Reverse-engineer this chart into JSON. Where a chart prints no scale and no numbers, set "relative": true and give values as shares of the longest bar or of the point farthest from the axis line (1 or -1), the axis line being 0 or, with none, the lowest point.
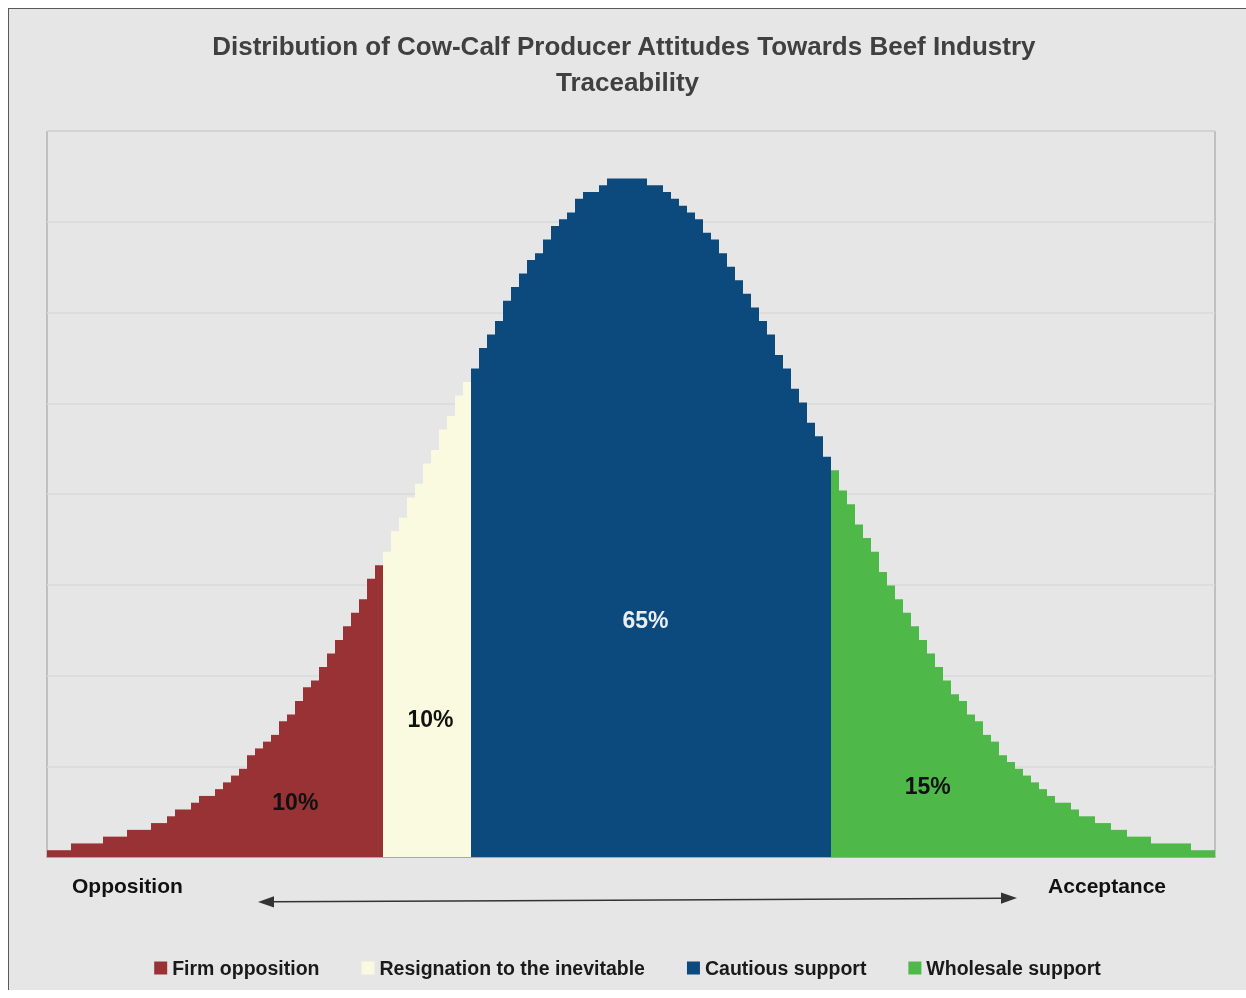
{
  "chart_data": {
    "type": "bar",
    "title": "Distribution of Cow-Calf Producer Attitudes Towards Beef Industry Traceability",
    "relative": true,
    "stacked": true,
    "grid": "y",
    "legend": "bottom",
    "annotations": [
      "10%",
      "10%",
      "65%",
      "15%",
      "Opposition",
      "Acceptance"
    ],
    "categories": [
      null,
      null,
      null,
      null,
      null,
      null,
      null,
      null,
      null,
      null,
      null,
      null,
      null,
      null,
      null,
      null,
      null,
      null,
      null,
      null,
      null,
      null,
      null,
      null,
      null,
      null,
      null,
      null,
      null,
      null,
      null,
      null,
      null,
      null,
      null,
      null,
      null,
      null,
      null,
      null,
      null,
      null,
      null,
      null,
      null,
      null,
      null,
      null,
      null,
      null,
      null,
      null,
      null,
      null,
      null,
      null,
      null,
      null,
      null,
      null,
      null,
      null,
      null,
      null,
      null,
      null,
      null,
      null,
      null,
      null,
      null,
      null,
      null,
      null,
      null,
      null,
      null,
      null,
      null,
      null,
      null,
      null,
      null,
      null,
      null,
      null,
      null,
      null,
      null,
      null,
      null,
      null,
      null,
      null,
      null,
      null,
      null,
      null,
      null,
      null,
      null,
      null,
      null,
      null,
      null,
      null,
      null,
      null,
      null,
      null,
      null,
      null,
      null,
      null,
      null,
      null,
      null,
      null,
      null,
      null,
      null,
      null,
      null,
      null,
      null,
      null,
      null,
      null,
      null,
      null,
      null,
      null,
      null,
      null,
      null,
      null,
      null,
      null,
      null,
      null,
      null,
      null,
      null,
      null,
      null,
      null
    ],
    "series": [
      {
        "name": "Firm opposition",
        "color": "#983234",
        "values": [
          0.01,
          0.01,
          0.01,
          0.02,
          0.02,
          0.02,
          0.02,
          0.03,
          0.03,
          0.03,
          0.04,
          0.04,
          0.04,
          0.05,
          0.05,
          0.06,
          0.07,
          0.07,
          0.08,
          0.09,
          0.09,
          0.1,
          0.11,
          0.12,
          0.13,
          0.15,
          0.16,
          0.17,
          0.18,
          0.2,
          0.21,
          0.23,
          0.25,
          0.26,
          0.28,
          0.3,
          0.32,
          0.34,
          0.36,
          0.38,
          0.41,
          0.43,
          null,
          null,
          null,
          null,
          null,
          null,
          null,
          null,
          null,
          null,
          null,
          null,
          null,
          null,
          null,
          null,
          null,
          null,
          null,
          null,
          null,
          null,
          null,
          null,
          null,
          null,
          null,
          null,
          null,
          null,
          null,
          null,
          null,
          null,
          null,
          null,
          null,
          null,
          null,
          null,
          null,
          null,
          null,
          null,
          null,
          null,
          null,
          null,
          null,
          null,
          null,
          null,
          null,
          null,
          null,
          null,
          null,
          null,
          null,
          null,
          null,
          null,
          null,
          null,
          null,
          null,
          null,
          null,
          null,
          null,
          null,
          null,
          null,
          null,
          null,
          null,
          null,
          null,
          null,
          null,
          null,
          null,
          null,
          null,
          null,
          null,
          null,
          null,
          null,
          null,
          null,
          null,
          null,
          null,
          null,
          null,
          null,
          null,
          null,
          null,
          null,
          null,
          null,
          null
        ]
      },
      {
        "name": "Resignation to the inevitable",
        "color": "#fafae1",
        "values": [
          null,
          null,
          null,
          null,
          null,
          null,
          null,
          null,
          null,
          null,
          null,
          null,
          null,
          null,
          null,
          null,
          null,
          null,
          null,
          null,
          null,
          null,
          null,
          null,
          null,
          null,
          null,
          null,
          null,
          null,
          null,
          null,
          null,
          null,
          null,
          null,
          null,
          null,
          null,
          null,
          null,
          null,
          0.45,
          0.48,
          0.5,
          0.53,
          0.55,
          0.58,
          0.6,
          0.63,
          0.65,
          0.68,
          0.7,
          null,
          null,
          null,
          null,
          null,
          null,
          null,
          null,
          null,
          null,
          null,
          null,
          null,
          null,
          null,
          null,
          null,
          null,
          null,
          null,
          null,
          null,
          null,
          null,
          null,
          null,
          null,
          null,
          null,
          null,
          null,
          null,
          null,
          null,
          null,
          null,
          null,
          null,
          null,
          null,
          null,
          null,
          null,
          null,
          null,
          null,
          null,
          null,
          null,
          null,
          null,
          null,
          null,
          null,
          null,
          null,
          null,
          null,
          null,
          null,
          null,
          null,
          null,
          null,
          null,
          null,
          null,
          null,
          null,
          null,
          null,
          null,
          null,
          null,
          null,
          null,
          null,
          null,
          null,
          null,
          null,
          null,
          null,
          null,
          null,
          null,
          null,
          null,
          null,
          null,
          null,
          null,
          null
        ]
      },
      {
        "name": "Cautious support",
        "color": "#0c4a7e",
        "values": [
          null,
          null,
          null,
          null,
          null,
          null,
          null,
          null,
          null,
          null,
          null,
          null,
          null,
          null,
          null,
          null,
          null,
          null,
          null,
          null,
          null,
          null,
          null,
          null,
          null,
          null,
          null,
          null,
          null,
          null,
          null,
          null,
          null,
          null,
          null,
          null,
          null,
          null,
          null,
          null,
          null,
          null,
          null,
          null,
          null,
          null,
          null,
          null,
          null,
          null,
          null,
          null,
          null,
          0.72,
          0.75,
          0.77,
          0.79,
          0.82,
          0.84,
          0.86,
          0.88,
          0.89,
          0.91,
          0.93,
          0.94,
          0.95,
          0.97,
          0.98,
          0.98,
          0.99,
          1,
          1,
          1,
          1,
          1,
          0.99,
          0.99,
          0.98,
          0.97,
          0.96,
          0.95,
          0.94,
          0.92,
          0.91,
          0.89,
          0.87,
          0.85,
          0.83,
          0.81,
          0.79,
          0.77,
          0.74,
          0.72,
          0.69,
          0.67,
          0.64,
          0.62,
          0.59,
          null,
          null,
          null,
          null,
          null,
          null,
          null,
          null,
          null,
          null,
          null,
          null,
          null,
          null,
          null,
          null,
          null,
          null,
          null,
          null,
          null,
          null,
          null,
          null,
          null,
          null,
          null,
          null,
          null,
          null,
          null,
          null,
          null,
          null,
          null,
          null,
          null,
          null,
          null,
          null,
          null,
          null,
          null,
          null,
          null,
          null,
          null,
          null
        ]
      },
      {
        "name": "Wholesale support",
        "color": "#4eb849",
        "values": [
          null,
          null,
          null,
          null,
          null,
          null,
          null,
          null,
          null,
          null,
          null,
          null,
          null,
          null,
          null,
          null,
          null,
          null,
          null,
          null,
          null,
          null,
          null,
          null,
          null,
          null,
          null,
          null,
          null,
          null,
          null,
          null,
          null,
          null,
          null,
          null,
          null,
          null,
          null,
          null,
          null,
          null,
          null,
          null,
          null,
          null,
          null,
          null,
          null,
          null,
          null,
          null,
          null,
          null,
          null,
          null,
          null,
          null,
          null,
          null,
          null,
          null,
          null,
          null,
          null,
          null,
          null,
          null,
          null,
          null,
          null,
          null,
          null,
          null,
          null,
          null,
          null,
          null,
          null,
          null,
          null,
          null,
          null,
          null,
          null,
          null,
          null,
          null,
          null,
          null,
          null,
          null,
          null,
          null,
          null,
          null,
          null,
          null,
          0.57,
          0.54,
          0.52,
          0.49,
          0.47,
          0.45,
          0.42,
          0.4,
          0.38,
          0.36,
          0.34,
          0.32,
          0.3,
          0.28,
          0.26,
          0.24,
          0.23,
          0.21,
          0.2,
          0.18,
          0.17,
          0.15,
          0.14,
          0.13,
          0.12,
          0.11,
          0.1,
          0.09,
          0.08,
          0.08,
          0.07,
          0.06,
          0.06,
          0.05,
          0.05,
          0.04,
          0.04,
          0.03,
          0.03,
          0.03,
          0.02,
          0.02,
          0.02,
          0.02,
          0.02,
          0.01,
          0.01,
          0.01
        ]
      }
    ]
  }
}
